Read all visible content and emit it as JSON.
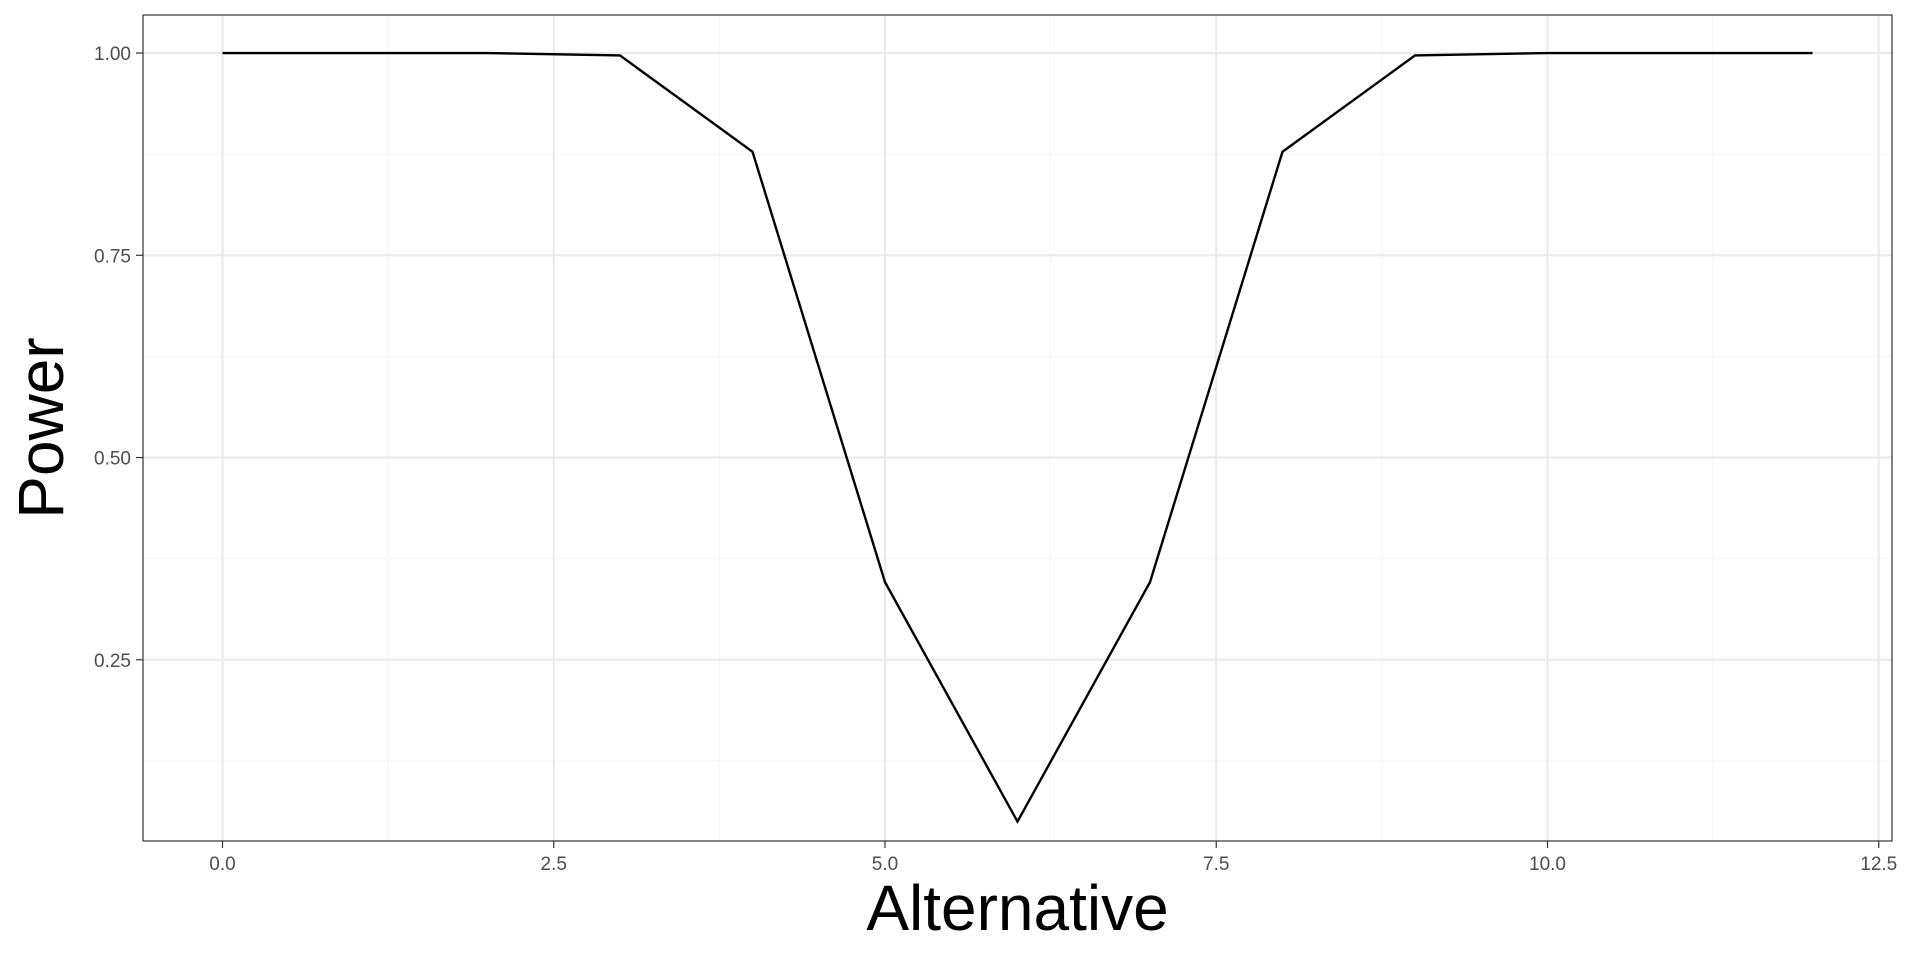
{
  "chart_data": {
    "type": "line",
    "xlabel": "Alternative",
    "ylabel": "Power",
    "xlim": [
      -0.6,
      12.6
    ],
    "ylim": [
      0.026,
      1.047
    ],
    "x_ticks": [
      0.0,
      2.5,
      5.0,
      7.5,
      10.0,
      12.5
    ],
    "x_tick_labels": [
      "0.0",
      "2.5",
      "5.0",
      "7.5",
      "10.0",
      "12.5"
    ],
    "y_ticks": [
      0.25,
      0.5,
      0.75,
      1.0
    ],
    "y_tick_labels": [
      "0.25",
      "0.50",
      "0.75",
      "1.00"
    ],
    "x_minor_ticks": [
      1.25,
      3.75,
      6.25,
      8.75,
      11.25
    ],
    "y_minor_ticks": [
      0.125,
      0.375,
      0.625,
      0.875
    ],
    "grid": true,
    "legend": "none",
    "series": [
      {
        "x": [
          0,
          1,
          2,
          3,
          4,
          5,
          6,
          7,
          8,
          9,
          10,
          11,
          12
        ],
        "values": [
          1.0,
          1.0,
          1.0,
          0.997,
          0.878,
          0.346,
          0.05,
          0.346,
          0.878,
          0.997,
          1.0,
          1.0,
          1.0
        ]
      }
    ],
    "colors": {
      "line": "#000000",
      "grid_major": "#ebebeb",
      "grid_minor": "#f5f5f5",
      "panel_border": "#333333",
      "tick_text": "#4d4d4d",
      "tick_mark": "#333333",
      "title_text": "#000000"
    }
  }
}
